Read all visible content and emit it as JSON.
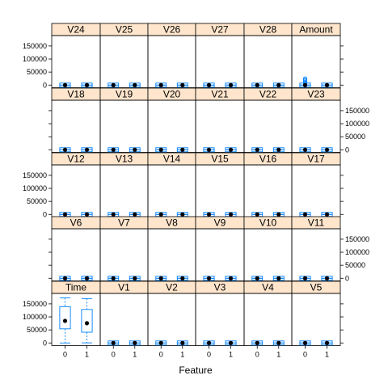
{
  "chart_data": {
    "type": "box",
    "xlabel": "Feature",
    "ylabel": "",
    "ylim": [
      -10000,
      190000
    ],
    "y_ticks": [
      0,
      50000,
      100000,
      150000
    ],
    "y_tick_labels": [
      "0",
      "50000",
      "100000",
      "150000"
    ],
    "x_categories": [
      "0",
      "1"
    ],
    "colors": {
      "box": "#0080ff",
      "strip_bg": "#ffe5cc",
      "dot": "#000000"
    },
    "panels": [
      {
        "name": "V24",
        "boxes": [
          {
            "median": 0,
            "q1": -1,
            "q3": 1,
            "lo": -3,
            "hi": 3
          },
          {
            "median": 0,
            "q1": -1,
            "q3": 1,
            "lo": -3,
            "hi": 3
          }
        ]
      },
      {
        "name": "V25",
        "boxes": [
          {
            "median": 0,
            "q1": -1,
            "q3": 1,
            "lo": -3,
            "hi": 3
          },
          {
            "median": 0,
            "q1": -1,
            "q3": 1,
            "lo": -3,
            "hi": 3
          }
        ]
      },
      {
        "name": "V26",
        "boxes": [
          {
            "median": 0,
            "q1": -1,
            "q3": 1,
            "lo": -3,
            "hi": 3
          },
          {
            "median": 0,
            "q1": -1,
            "q3": 1,
            "lo": -3,
            "hi": 3
          }
        ]
      },
      {
        "name": "V27",
        "boxes": [
          {
            "median": 0,
            "q1": -1,
            "q3": 1,
            "lo": -3,
            "hi": 3
          },
          {
            "median": 0,
            "q1": -1,
            "q3": 1,
            "lo": -3,
            "hi": 3
          }
        ]
      },
      {
        "name": "V28",
        "boxes": [
          {
            "median": 0,
            "q1": -1,
            "q3": 1,
            "lo": -3,
            "hi": 3
          },
          {
            "median": 0,
            "q1": -1,
            "q3": 1,
            "lo": -3,
            "hi": 3
          }
        ]
      },
      {
        "name": "Amount",
        "boxes": [
          {
            "median": 22,
            "q1": 6,
            "q3": 77,
            "lo": 0,
            "hi": 184,
            "outliers": [
              5000,
              9000,
              13000,
              17000,
              21000,
              25000
            ]
          },
          {
            "median": 9,
            "q1": 1,
            "q3": 105,
            "lo": 0,
            "hi": 250
          }
        ]
      },
      {
        "name": "V18",
        "boxes": [
          {
            "median": 0,
            "q1": -1,
            "q3": 1,
            "lo": -3,
            "hi": 3
          },
          {
            "median": 0,
            "q1": -1,
            "q3": 1,
            "lo": -3,
            "hi": 3
          }
        ]
      },
      {
        "name": "V19",
        "boxes": [
          {
            "median": 0,
            "q1": -1,
            "q3": 1,
            "lo": -3,
            "hi": 3
          },
          {
            "median": 0,
            "q1": -1,
            "q3": 1,
            "lo": -3,
            "hi": 3
          }
        ]
      },
      {
        "name": "V20",
        "boxes": [
          {
            "median": 0,
            "q1": -1,
            "q3": 1,
            "lo": -3,
            "hi": 3
          },
          {
            "median": 0,
            "q1": -1,
            "q3": 1,
            "lo": -3,
            "hi": 3
          }
        ]
      },
      {
        "name": "V21",
        "boxes": [
          {
            "median": 0,
            "q1": -1,
            "q3": 1,
            "lo": -3,
            "hi": 3
          },
          {
            "median": 0,
            "q1": -1,
            "q3": 1,
            "lo": -3,
            "hi": 3
          }
        ]
      },
      {
        "name": "V22",
        "boxes": [
          {
            "median": 0,
            "q1": -1,
            "q3": 1,
            "lo": -3,
            "hi": 3
          },
          {
            "median": 0,
            "q1": -1,
            "q3": 1,
            "lo": -3,
            "hi": 3
          }
        ]
      },
      {
        "name": "V23",
        "boxes": [
          {
            "median": 0,
            "q1": -1,
            "q3": 1,
            "lo": -3,
            "hi": 3
          },
          {
            "median": 0,
            "q1": -1,
            "q3": 1,
            "lo": -3,
            "hi": 3
          }
        ]
      },
      {
        "name": "V12",
        "boxes": [
          {
            "median": 0,
            "q1": -1,
            "q3": 1,
            "lo": -3,
            "hi": 3
          },
          {
            "median": 0,
            "q1": -1,
            "q3": 1,
            "lo": -3,
            "hi": 3
          }
        ]
      },
      {
        "name": "V13",
        "boxes": [
          {
            "median": 0,
            "q1": -1,
            "q3": 1,
            "lo": -3,
            "hi": 3
          },
          {
            "median": 0,
            "q1": -1,
            "q3": 1,
            "lo": -3,
            "hi": 3
          }
        ]
      },
      {
        "name": "V14",
        "boxes": [
          {
            "median": 0,
            "q1": -1,
            "q3": 1,
            "lo": -3,
            "hi": 3
          },
          {
            "median": 0,
            "q1": -1,
            "q3": 1,
            "lo": -3,
            "hi": 3
          }
        ]
      },
      {
        "name": "V15",
        "boxes": [
          {
            "median": 0,
            "q1": -1,
            "q3": 1,
            "lo": -3,
            "hi": 3
          },
          {
            "median": 0,
            "q1": -1,
            "q3": 1,
            "lo": -3,
            "hi": 3
          }
        ]
      },
      {
        "name": "V16",
        "boxes": [
          {
            "median": 0,
            "q1": -1,
            "q3": 1,
            "lo": -3,
            "hi": 3
          },
          {
            "median": 0,
            "q1": -1,
            "q3": 1,
            "lo": -3,
            "hi": 3
          }
        ]
      },
      {
        "name": "V17",
        "boxes": [
          {
            "median": 0,
            "q1": -1,
            "q3": 1,
            "lo": -3,
            "hi": 3
          },
          {
            "median": 0,
            "q1": -1,
            "q3": 1,
            "lo": -3,
            "hi": 3
          }
        ]
      },
      {
        "name": "V6",
        "boxes": [
          {
            "median": 0,
            "q1": -1,
            "q3": 1,
            "lo": -3,
            "hi": 3
          },
          {
            "median": 0,
            "q1": -1,
            "q3": 1,
            "lo": -3,
            "hi": 3
          }
        ]
      },
      {
        "name": "V7",
        "boxes": [
          {
            "median": 0,
            "q1": -1,
            "q3": 1,
            "lo": -3,
            "hi": 3
          },
          {
            "median": 0,
            "q1": -1,
            "q3": 1,
            "lo": -3,
            "hi": 3
          }
        ]
      },
      {
        "name": "V8",
        "boxes": [
          {
            "median": 0,
            "q1": -1,
            "q3": 1,
            "lo": -3,
            "hi": 3
          },
          {
            "median": 0,
            "q1": -1,
            "q3": 1,
            "lo": -3,
            "hi": 3
          }
        ]
      },
      {
        "name": "V9",
        "boxes": [
          {
            "median": 0,
            "q1": -1,
            "q3": 1,
            "lo": -3,
            "hi": 3
          },
          {
            "median": 0,
            "q1": -1,
            "q3": 1,
            "lo": -3,
            "hi": 3
          }
        ]
      },
      {
        "name": "V10",
        "boxes": [
          {
            "median": 0,
            "q1": -1,
            "q3": 1,
            "lo": -3,
            "hi": 3
          },
          {
            "median": 0,
            "q1": -1,
            "q3": 1,
            "lo": -3,
            "hi": 3
          }
        ]
      },
      {
        "name": "V11",
        "boxes": [
          {
            "median": 0,
            "q1": -1,
            "q3": 1,
            "lo": -3,
            "hi": 3
          },
          {
            "median": 0,
            "q1": -1,
            "q3": 1,
            "lo": -3,
            "hi": 3
          }
        ]
      },
      {
        "name": "Time",
        "boxes": [
          {
            "median": 84700,
            "q1": 54200,
            "q3": 139300,
            "lo": 0,
            "hi": 172800
          },
          {
            "median": 75600,
            "q1": 41200,
            "q3": 128500,
            "lo": 400,
            "hi": 170300
          }
        ]
      },
      {
        "name": "V1",
        "boxes": [
          {
            "median": 0,
            "q1": -1,
            "q3": 1,
            "lo": -3,
            "hi": 3
          },
          {
            "median": 0,
            "q1": -1,
            "q3": 1,
            "lo": -3,
            "hi": 3
          }
        ]
      },
      {
        "name": "V2",
        "boxes": [
          {
            "median": 0,
            "q1": -1,
            "q3": 1,
            "lo": -3,
            "hi": 3
          },
          {
            "median": 0,
            "q1": -1,
            "q3": 1,
            "lo": -3,
            "hi": 3
          }
        ]
      },
      {
        "name": "V3",
        "boxes": [
          {
            "median": 0,
            "q1": -1,
            "q3": 1,
            "lo": -3,
            "hi": 3
          },
          {
            "median": 0,
            "q1": -1,
            "q3": 1,
            "lo": -3,
            "hi": 3
          }
        ]
      },
      {
        "name": "V4",
        "boxes": [
          {
            "median": 0,
            "q1": -1,
            "q3": 1,
            "lo": -3,
            "hi": 3
          },
          {
            "median": 0,
            "q1": -1,
            "q3": 1,
            "lo": -3,
            "hi": 3
          }
        ]
      },
      {
        "name": "V5",
        "boxes": [
          {
            "median": 0,
            "q1": -1,
            "q3": 1,
            "lo": -3,
            "hi": 3
          },
          {
            "median": 0,
            "q1": -1,
            "q3": 1,
            "lo": -3,
            "hi": 3
          }
        ]
      }
    ]
  }
}
